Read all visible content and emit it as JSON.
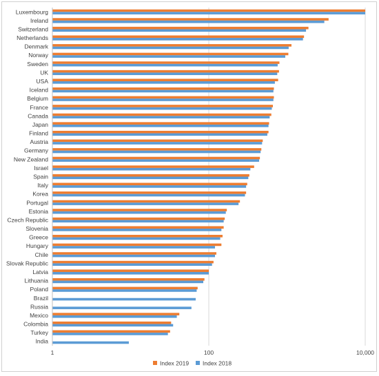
{
  "chart_data": {
    "type": "bar",
    "orientation": "horizontal",
    "x_scale": "log",
    "xlim": [
      1,
      10000
    ],
    "grid": true,
    "legend_position": "bottom",
    "x_ticks": [
      "1",
      "100",
      "10,000"
    ],
    "categories": [
      "Luxembourg",
      "Ireland",
      "Switzerland",
      "Netherlands",
      "Denmark",
      "Norway",
      "Sweden",
      "UK",
      "USA",
      "Iceland",
      "Belgium",
      "France",
      "Canada",
      "Japan",
      "Finland",
      "Austria",
      "Germany",
      "New Zealand",
      "Israel",
      "Spain",
      "Italy",
      "Korea",
      "Portugal",
      "Estonia",
      "Czech Republic",
      "Slovenia",
      "Greece",
      "Hungary",
      "Chile",
      "Slovak Republic",
      "Latvia",
      "Lithuania",
      "Poland",
      "Brazil",
      "Russia",
      "Mexico",
      "Colombia",
      "Turkey",
      "India"
    ],
    "series": [
      {
        "name": "Index 2019",
        "color": "#ED7D31",
        "values": [
          10000,
          3400,
          1880,
          1650,
          1140,
          1040,
          800,
          790,
          770,
          680,
          680,
          660,
          630,
          590,
          580,
          490,
          470,
          450,
          380,
          330,
          310,
          300,
          250,
          170,
          160,
          155,
          150,
          145,
          125,
          115,
          100,
          88,
          72,
          null,
          null,
          42,
          33,
          32,
          null
        ]
      },
      {
        "name": "Index 2018",
        "color": "#5B9BD5",
        "values": [
          10000,
          3000,
          1750,
          1600,
          1050,
          950,
          760,
          750,
          700,
          670,
          670,
          640,
          600,
          580,
          560,
          480,
          460,
          440,
          340,
          320,
          300,
          290,
          240,
          165,
          155,
          145,
          140,
          120,
          120,
          110,
          100,
          85,
          70,
          68,
          60,
          39,
          35,
          30,
          9.5
        ]
      }
    ]
  }
}
